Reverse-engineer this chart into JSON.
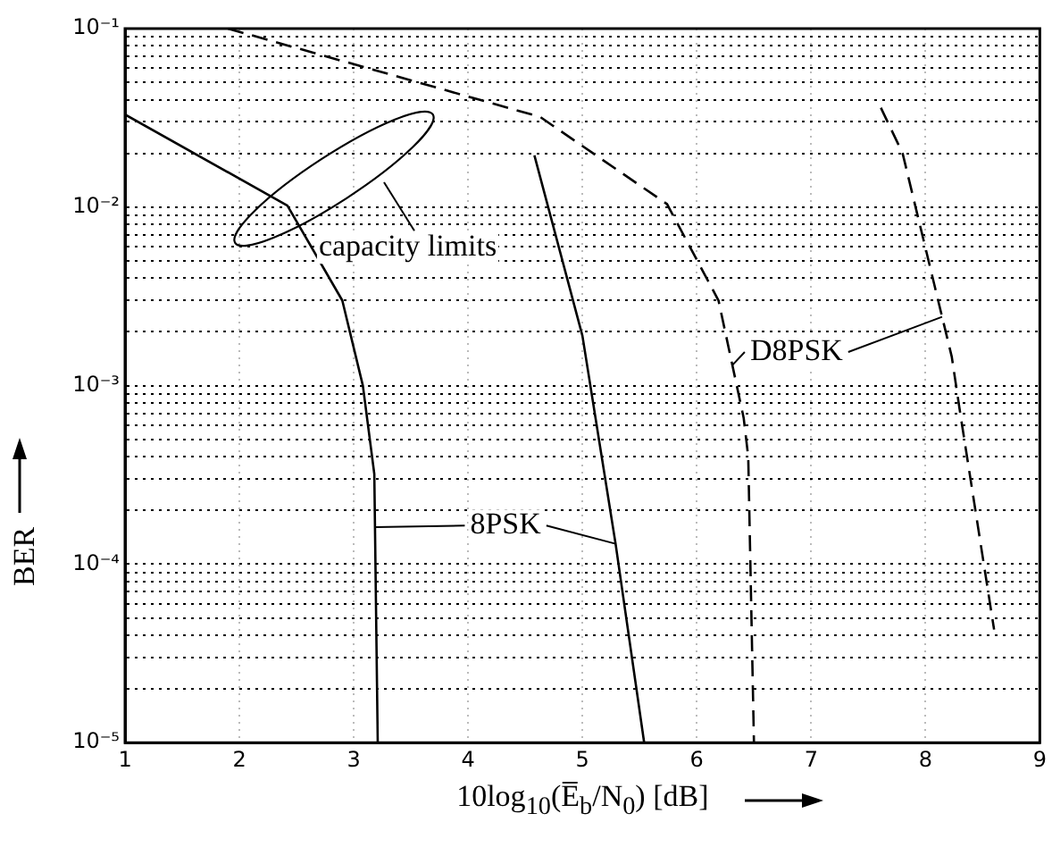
{
  "chart_data": {
    "type": "line",
    "xlabel": "10log$_{10}$(E̅$_{b}$/N$_{0}$)  [dB]",
    "ylabel": "BER",
    "xlim": [
      1,
      9
    ],
    "xticks": [
      1,
      2,
      3,
      4,
      5,
      6,
      7,
      8,
      9
    ],
    "ylim": [
      1e-05,
      0.1
    ],
    "log": "y",
    "yticks": [
      {
        "value": 1e-05,
        "label": "10⁻⁵"
      },
      {
        "value": 2e-05,
        "label": null
      },
      {
        "value": 3e-05,
        "label": null
      },
      {
        "value": 4e-05,
        "label": null
      },
      {
        "value": 5e-05,
        "label": null
      },
      {
        "value": 6e-05,
        "label": null
      },
      {
        "value": 7e-05,
        "label": null
      },
      {
        "value": 8e-05,
        "label": null
      },
      {
        "value": 9e-05,
        "label": null
      },
      {
        "value": 0.0001,
        "label": "10⁻⁴"
      },
      {
        "value": 0.0002,
        "label": null
      },
      {
        "value": 0.0003,
        "label": null
      },
      {
        "value": 0.0004,
        "label": null
      },
      {
        "value": 0.0005,
        "label": null
      },
      {
        "value": 0.0006,
        "label": null
      },
      {
        "value": 0.0007,
        "label": null
      },
      {
        "value": 0.0008,
        "label": null
      },
      {
        "value": 0.0009,
        "label": null
      },
      {
        "value": 0.001,
        "label": "10⁻³"
      },
      {
        "value": 0.002,
        "label": null
      },
      {
        "value": 0.003,
        "label": null
      },
      {
        "value": 0.004,
        "label": null
      },
      {
        "value": 0.005,
        "label": null
      },
      {
        "value": 0.006,
        "label": null
      },
      {
        "value": 0.007,
        "label": null
      },
      {
        "value": 0.008,
        "label": null
      },
      {
        "value": 0.009,
        "label": null
      },
      {
        "value": 0.01,
        "label": "10⁻²"
      },
      {
        "value": 0.02,
        "label": null
      },
      {
        "value": 0.03,
        "label": null
      },
      {
        "value": 0.04,
        "label": null
      },
      {
        "value": 0.05,
        "label": null
      },
      {
        "value": 0.06,
        "label": null
      },
      {
        "value": 0.07,
        "label": null
      },
      {
        "value": 0.08,
        "label": null
      },
      {
        "value": 0.09,
        "label": null
      },
      {
        "value": 0.1,
        "label": "10⁻¹"
      }
    ],
    "grid": true,
    "legend": false,
    "marker": "none",
    "series": [
      {
        "color": "#000000",
        "line_style": "solid",
        "x": [
          1,
          2.42,
          2.9,
          3.08,
          3.18,
          3.21
        ],
        "values": [
          0.033,
          0.0102,
          0.003,
          0.001,
          0.00032,
          1e-05
        ]
      },
      {
        "color": "#000000",
        "line_style": "solid",
        "x": [
          4.58,
          5.0,
          5.29,
          5.54
        ],
        "values": [
          0.0195,
          0.0019,
          0.00013,
          1e-05
        ]
      },
      {
        "color": "#000000",
        "line_style": "dashed",
        "x": [
          1.9,
          4.63,
          5.74,
          6.19,
          6.41,
          6.45,
          6.5
        ],
        "values": [
          0.1,
          0.032,
          0.0104,
          0.003,
          0.00066,
          0.0004,
          1e-05
        ]
      },
      {
        "color": "#000000",
        "line_style": "dashed",
        "x": [
          7.61,
          7.8,
          8.23,
          8.31,
          8.6
        ],
        "values": [
          0.036,
          0.02,
          0.00145,
          0.00066,
          4.3e-05
        ]
      }
    ],
    "annotations": [
      "capacity limits",
      {
        "text": "8PSK",
        "x": 5.29,
        "y": 0.00013
      },
      {
        "text": "D8PSK",
        "x": 6.31,
        "y": 0.0013
      }
    ]
  }
}
